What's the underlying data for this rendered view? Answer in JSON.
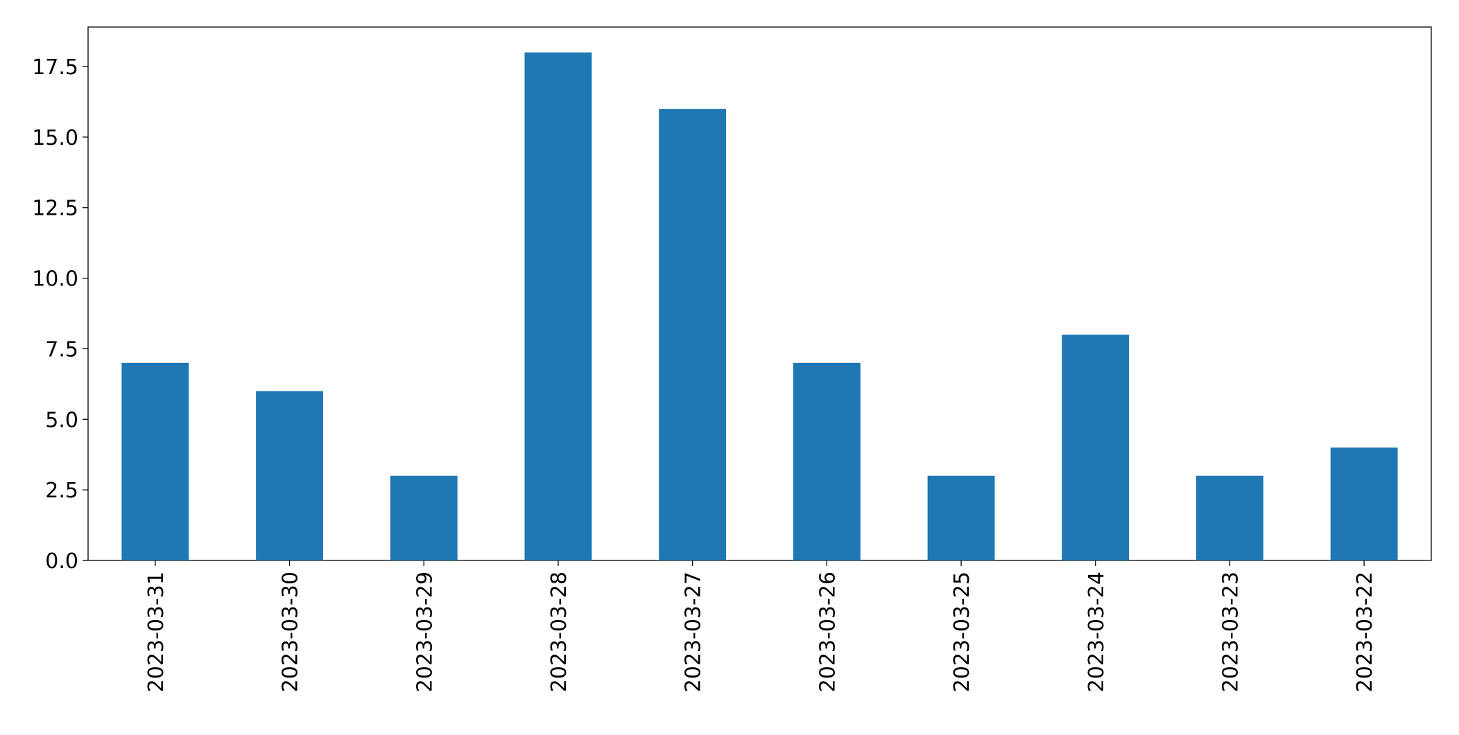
{
  "chart_data": {
    "type": "bar",
    "categories": [
      "2023-03-31",
      "2023-03-30",
      "2023-03-29",
      "2023-03-28",
      "2023-03-27",
      "2023-03-26",
      "2023-03-25",
      "2023-03-24",
      "2023-03-23",
      "2023-03-22"
    ],
    "values": [
      7,
      6,
      3,
      18,
      16,
      7,
      3,
      8,
      3,
      4
    ],
    "color": "#1f77b4",
    "ylim": [
      0,
      18.9
    ],
    "yticks": [
      {
        "value": 0,
        "label": "0.0"
      },
      2.5,
      {
        "value": 5,
        "label": "5.0"
      },
      7.5,
      {
        "value": 10,
        "label": "10.0"
      },
      12.5,
      {
        "value": 15,
        "label": "15.0"
      },
      17.5
    ],
    "grid": false
  }
}
